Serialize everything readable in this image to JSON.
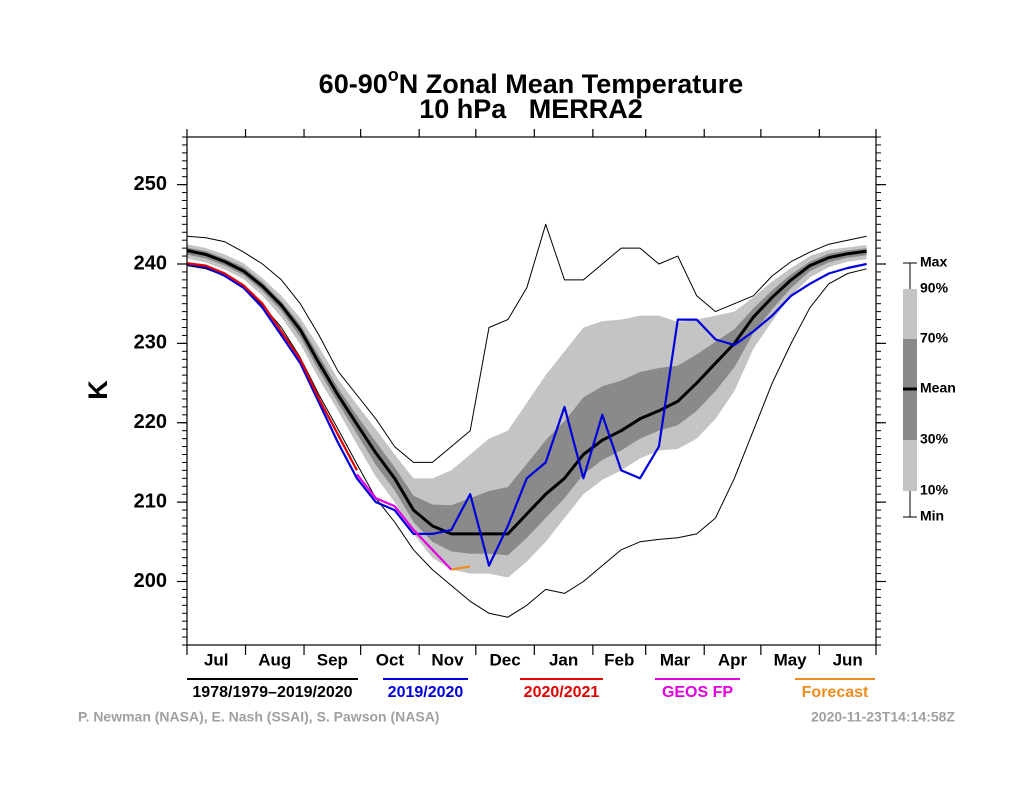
{
  "chart_data": {
    "type": "climatology",
    "title_main": "60-90",
    "title_sup": "o",
    "title_rest": "N Zonal Mean Temperature",
    "subtitle": "10 hPa   MERRA2",
    "ylabel": "K",
    "x": [
      0,
      10,
      20,
      30,
      40,
      50,
      60,
      70,
      80,
      90,
      100,
      110,
      120,
      130,
      140,
      150,
      160,
      170,
      180,
      190,
      200,
      210,
      220,
      230,
      240,
      250,
      260,
      270,
      280,
      290,
      300,
      310,
      320,
      330,
      340,
      350,
      360
    ],
    "xlim": [
      0,
      365
    ],
    "xticks": [
      0,
      31,
      62,
      92,
      123,
      153,
      184,
      215,
      243,
      274,
      304,
      335,
      365
    ],
    "month_labels": [
      "Jul",
      "Aug",
      "Sep",
      "Oct",
      "Nov",
      "Dec",
      "Jan",
      "Feb",
      "Mar",
      "Apr",
      "May",
      "Jun"
    ],
    "ylim": [
      192,
      256
    ],
    "yticks": [
      200,
      210,
      220,
      230,
      240,
      250
    ],
    "yticks_minor": [
      192,
      193,
      194,
      195,
      196,
      197,
      198,
      199,
      200,
      201,
      202,
      203,
      204,
      205,
      206,
      207,
      208,
      209,
      210,
      211,
      212,
      213,
      214,
      215,
      216,
      217,
      218,
      219,
      220,
      221,
      222,
      223,
      224,
      225,
      226,
      227,
      228,
      229,
      230,
      231,
      232,
      233,
      234,
      235,
      236,
      237,
      238,
      239,
      240,
      241,
      242,
      243,
      244,
      245,
      246,
      247,
      248,
      249,
      250,
      251,
      252,
      253,
      254,
      255,
      256
    ],
    "climatology_name": "1978/1979–2019/2020",
    "climatology_color": "#000000",
    "band_outer_color": "#c4c4c4",
    "band_inner_color": "#8a8a8a",
    "climatology": {
      "max": [
        243.5,
        243.3,
        242.8,
        241.5,
        240,
        238,
        235,
        231,
        226.5,
        223.5,
        220.5,
        217,
        215,
        215,
        217,
        219,
        232,
        233,
        237,
        245,
        238,
        238,
        240,
        242,
        242,
        240,
        241,
        236,
        234,
        235,
        236,
        238.5,
        240.3,
        241.5,
        242.5,
        243,
        243.5
      ],
      "p90": [
        242.5,
        242,
        241.2,
        240.1,
        238.2,
        236,
        233.2,
        229.5,
        225.5,
        222.3,
        219.2,
        216,
        213,
        213,
        214,
        216,
        218,
        219,
        222.5,
        226,
        229,
        232,
        232.8,
        233,
        233.5,
        233.5,
        232.7,
        233,
        233.5,
        234,
        235.8,
        237.8,
        239.5,
        241,
        241.8,
        242.1,
        242.4
      ],
      "p70": [
        242.1,
        241.6,
        240.7,
        239.6,
        237.7,
        235.3,
        232.4,
        228.4,
        224.4,
        220.9,
        217.6,
        214.4,
        210.8,
        209.7,
        209.6,
        210.5,
        211.4,
        211.9,
        214.8,
        217.8,
        220.2,
        223.2,
        224.6,
        225.3,
        226.4,
        226.9,
        227.2,
        228.6,
        230.2,
        231.8,
        234.4,
        236.7,
        238.7,
        240.3,
        241.3,
        241.7,
        242.0
      ],
      "mean": [
        241.7,
        241.2,
        240.3,
        239.1,
        237.2,
        234.8,
        231.7,
        227.5,
        223.5,
        219.8,
        216.2,
        213,
        209,
        207,
        206,
        206,
        206,
        206,
        208.5,
        211,
        213,
        216,
        217.8,
        219,
        220.5,
        221.5,
        222.7,
        225,
        227.5,
        230,
        233.3,
        235.8,
        238,
        239.8,
        240.8,
        241.3,
        241.6
      ],
      "p30": [
        241.2,
        240.7,
        239.8,
        238.6,
        236.6,
        234.1,
        230.8,
        226.5,
        222.5,
        218.6,
        214.7,
        211.5,
        207.5,
        205,
        203.8,
        203.5,
        203.5,
        203.3,
        205.5,
        208,
        210.5,
        213.5,
        215.3,
        216.5,
        218,
        219,
        219.7,
        221.5,
        224,
        227,
        231.3,
        234.3,
        237,
        239.1,
        240.2,
        240.8,
        241.1
      ],
      "p10": [
        240.7,
        240.2,
        239.3,
        238.1,
        236,
        233.3,
        229.9,
        225.5,
        221.5,
        217.3,
        213.2,
        210,
        206,
        203,
        201.5,
        201,
        201,
        200.5,
        202.5,
        205,
        208,
        211,
        212.8,
        214,
        215.5,
        216.5,
        216.7,
        218,
        220.5,
        224,
        229.3,
        232.8,
        236,
        238.3,
        239.6,
        240.3,
        240.6
      ],
      "min": [
        239.8,
        239.4,
        238.5,
        237,
        234.8,
        232,
        228.2,
        223.5,
        219.2,
        214.8,
        210.5,
        207.5,
        204,
        201.5,
        199.5,
        197.5,
        196,
        195.5,
        197,
        199,
        198.5,
        200,
        202,
        204,
        205,
        205.3,
        205.5,
        206,
        208,
        213,
        219,
        225,
        230,
        234.5,
        237.5,
        238.8,
        239.4
      ]
    },
    "legend_labels": {
      "max": "Max",
      "p90": "90%",
      "p70": "70%",
      "mean": "Mean",
      "p30": "30%",
      "p10": "10%",
      "min": "Min"
    },
    "series": [
      {
        "name": "2019/2020",
        "color": "#0000dd",
        "values": [
          240,
          239.6,
          238.5,
          237,
          234.5,
          231,
          227.5,
          222.5,
          217.5,
          213,
          210,
          209,
          206,
          206,
          206.5,
          211,
          202,
          207,
          213,
          215,
          222,
          213,
          221,
          214,
          213,
          217,
          233,
          233,
          230.5,
          229.8,
          231.5,
          233.5,
          236,
          237.5,
          238.8,
          239.5,
          240
        ]
      },
      {
        "name": "2020/2021",
        "color": "#e00000",
        "values": [
          240.1,
          239.8,
          238.8,
          237.3,
          235,
          231.5,
          228,
          223,
          218.5,
          214,
          null,
          null,
          null,
          null,
          null,
          null,
          null,
          null,
          null,
          null,
          null,
          null,
          null,
          null,
          null,
          null,
          null,
          null,
          null,
          null,
          null,
          null,
          null,
          null,
          null,
          null,
          null
        ]
      },
      {
        "name": "GEOS FP",
        "color": "#e000e0",
        "values": [
          null,
          null,
          null,
          null,
          null,
          null,
          null,
          null,
          null,
          213.5,
          210.5,
          209.5,
          206.5,
          204,
          201.5,
          null,
          null,
          null,
          null,
          null,
          null,
          null,
          null,
          null,
          null,
          null,
          null,
          null,
          null,
          null,
          null,
          null,
          null,
          null,
          null,
          null,
          null
        ]
      },
      {
        "name": "Forecast",
        "color": "#f08c1e",
        "values": [
          null,
          null,
          null,
          null,
          null,
          null,
          null,
          null,
          null,
          null,
          null,
          null,
          null,
          null,
          201.5,
          201.9,
          null,
          null,
          null,
          null,
          null,
          null,
          null,
          null,
          null,
          null,
          null,
          null,
          null,
          null,
          null,
          null,
          null,
          null,
          null,
          null,
          null
        ]
      }
    ],
    "credits": "P. Newman (NASA), E. Nash (SSAI), S. Pawson (NASA)",
    "timestamp": "2020-11-23T14:14:58Z"
  }
}
